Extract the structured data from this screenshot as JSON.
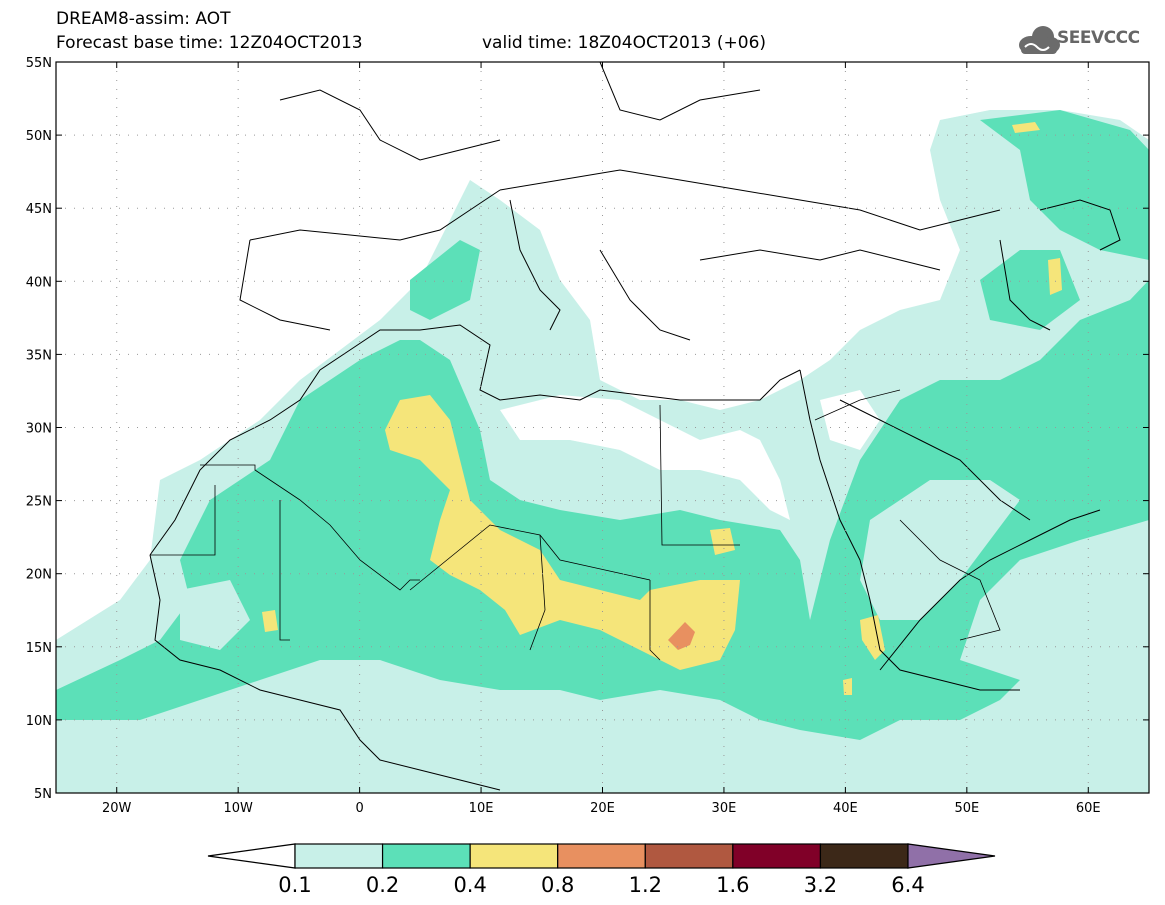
{
  "header": {
    "title_line1": "DREAM8-assim: AOT",
    "title_line2": "Forecast base time: 12Z04OCT2013",
    "valid_time": "valid time: 18Z04OCT2013 (+06)"
  },
  "logo": {
    "text": "SEEVCCC",
    "icon": "cloud-icon",
    "color": "#6b6b6b"
  },
  "map": {
    "projection": "lat-lon",
    "lon_range": [
      -25,
      65
    ],
    "lat_range": [
      5,
      55
    ],
    "lat_labels": [
      "55N",
      "50N",
      "45N",
      "40N",
      "35N",
      "30N",
      "25N",
      "20N",
      "15N",
      "10N",
      "5N"
    ],
    "lon_labels": [
      "20W",
      "10W",
      "0",
      "10E",
      "20E",
      "30E",
      "40E",
      "50E",
      "60E"
    ],
    "grid": "dotted"
  },
  "colorbar": {
    "labels": [
      "0.1",
      "0.2",
      "0.4",
      "0.8",
      "1.2",
      "1.6",
      "3.2",
      "6.4"
    ],
    "colors": [
      "#c8f0e8",
      "#5ce0b8",
      "#f5e57a",
      "#e89060",
      "#b05840",
      "#800028",
      "#3c2818",
      "#9070a8"
    ],
    "under_color": "#ffffff"
  }
}
